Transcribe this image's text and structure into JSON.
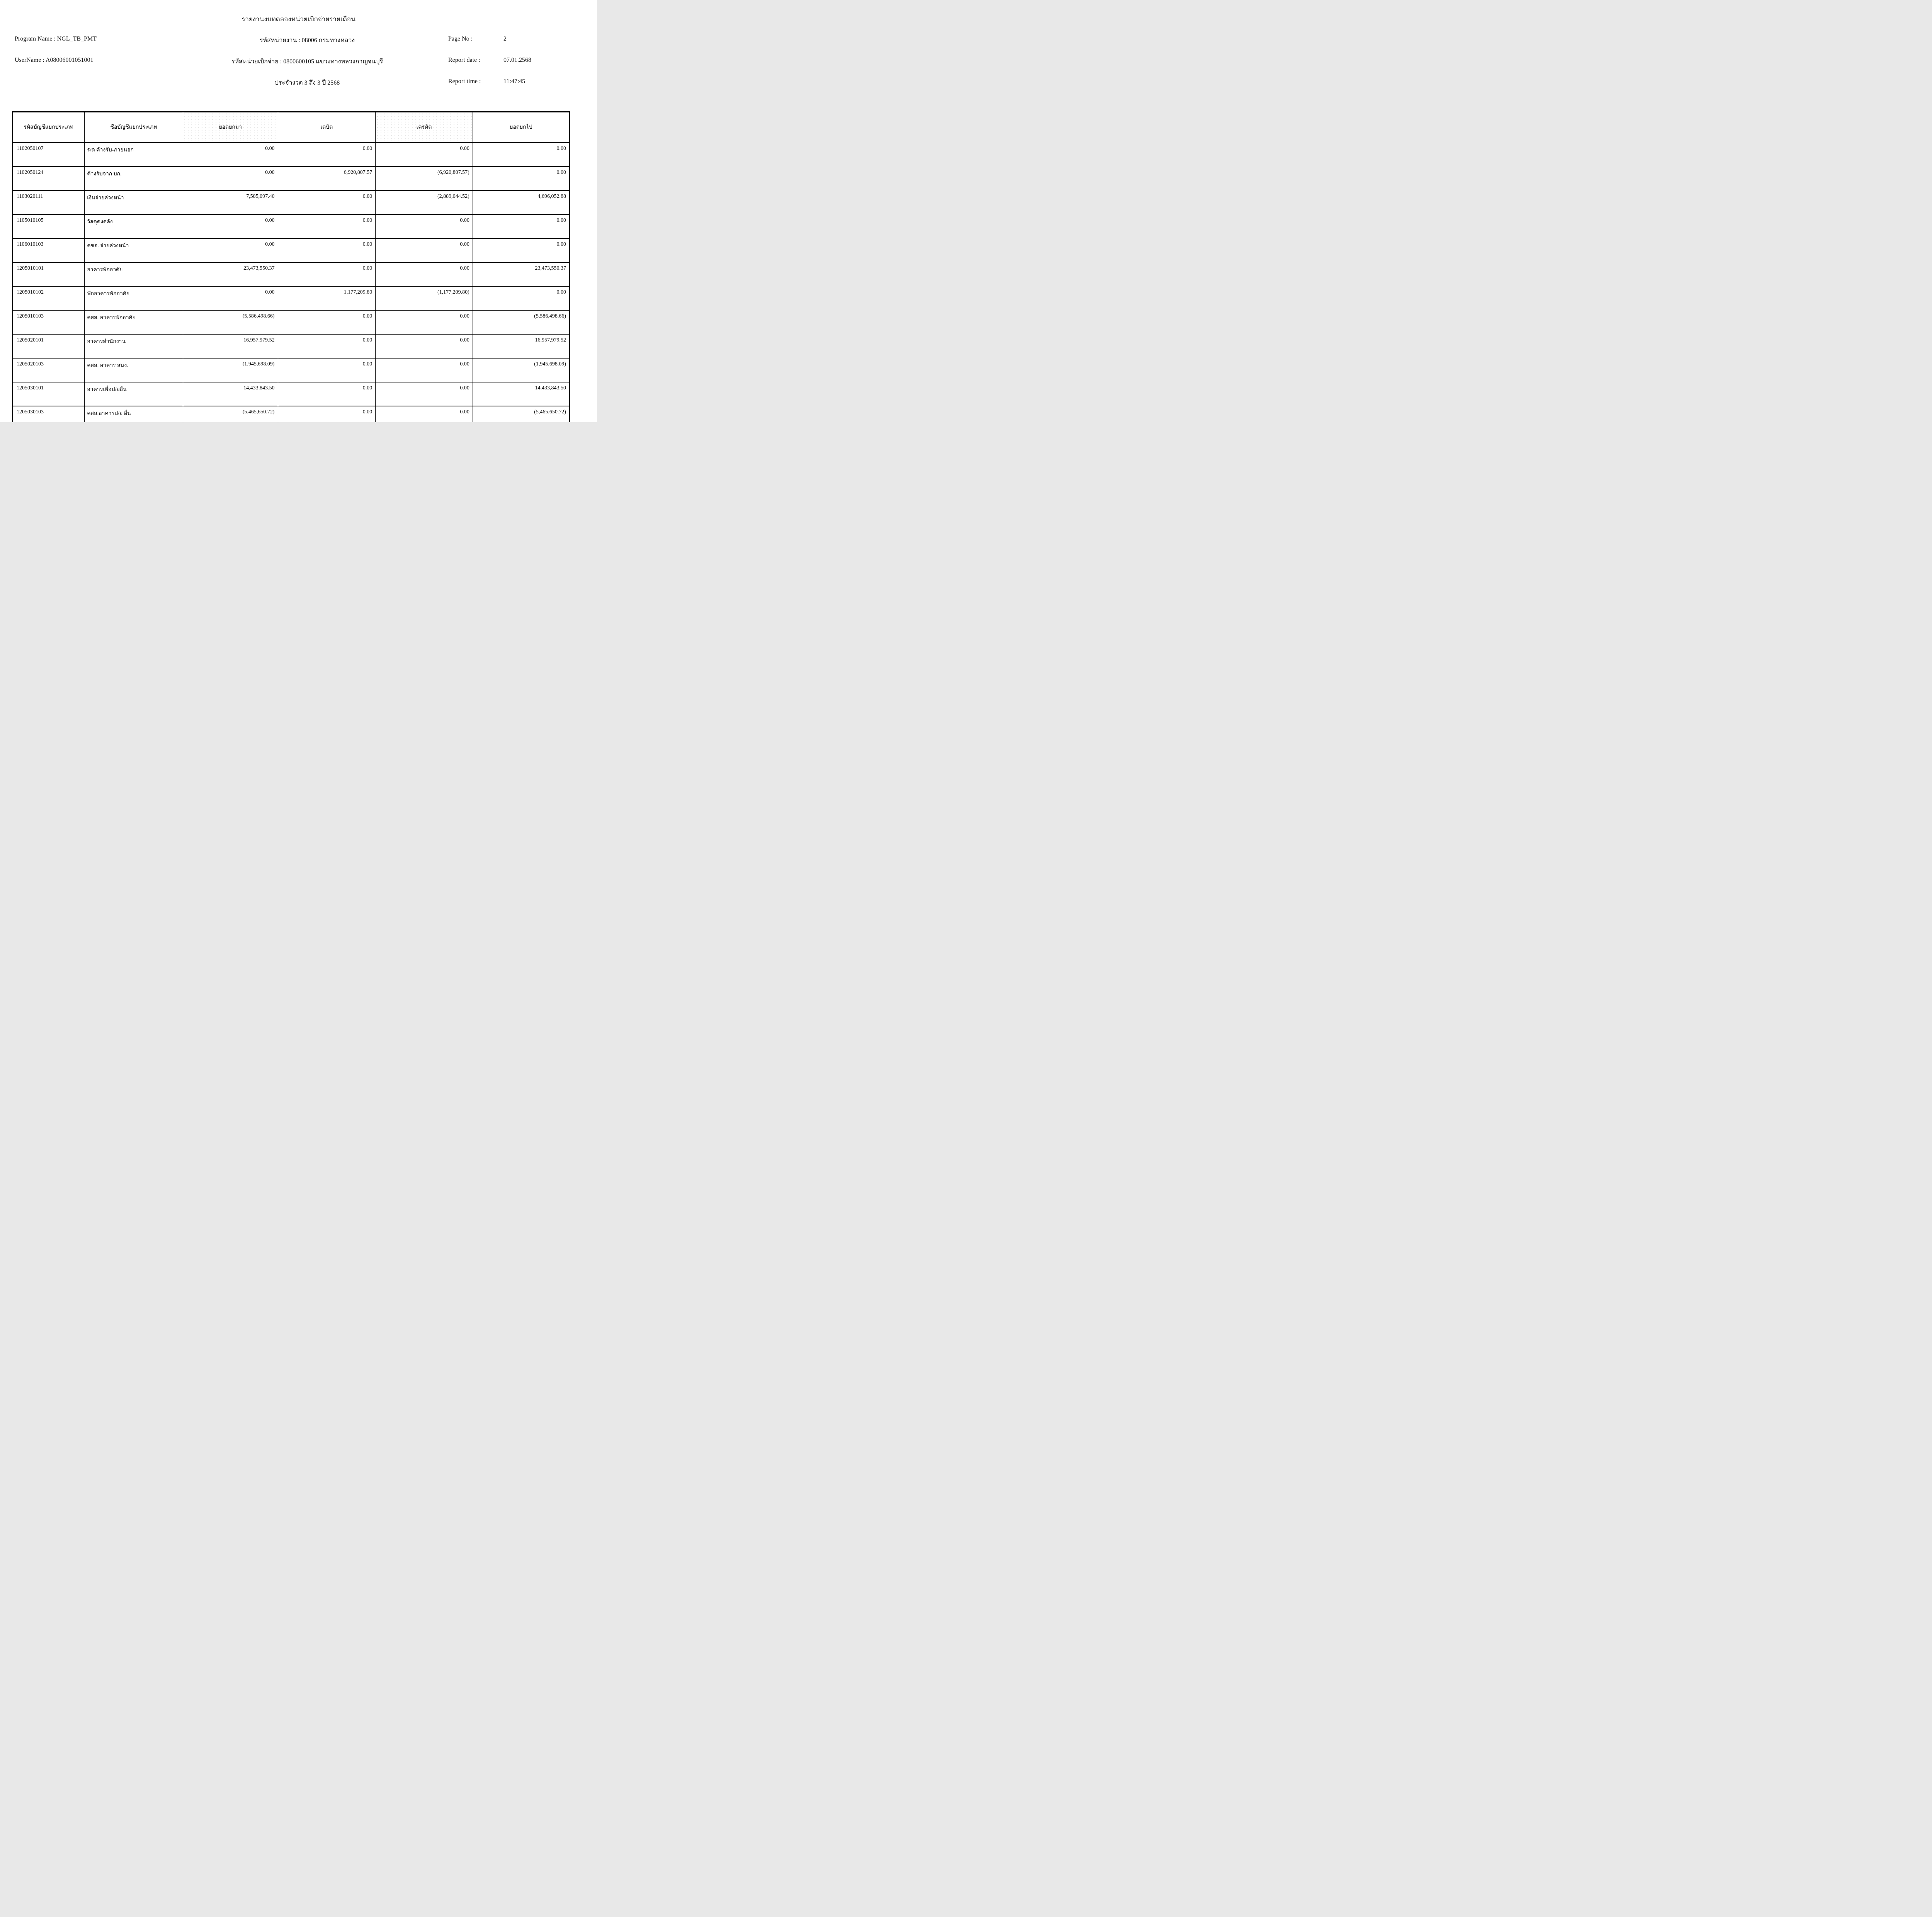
{
  "report": {
    "title": "รายงานงบทดลองหน่วยเบิกจ่ายรายเดือน",
    "program_name_label": "Program Name : NGL_TB_PMT",
    "username_label": "UserName : A08006001051001",
    "agency_line": "รหัสหน่วยงาน : 08006 กรมทางหลวง",
    "disbursement_line": "รหัสหน่วยเบิกจ่าย : 0800600105 แขวงทางหลวงกาญจนบุรี",
    "period_line": "ประจำงวด 3 ถึง 3 ปี 2568",
    "page_no_label": "Page No :",
    "page_no": "2",
    "report_date_label": "Report date :",
    "report_date": "07.01.2568",
    "report_time_label": "Report time :",
    "report_time": "11:47:45"
  },
  "table": {
    "columns": [
      "รหัสบัญชีแยกประเภท",
      "ชื่อบัญชีแยกประเภท",
      "ยอดยกมา",
      "เดบิต",
      "เครดิต",
      "ยอดยกไป"
    ],
    "rows": [
      {
        "code": "1102050107",
        "name": "ร/ด ค้างรับ-ภายนอก",
        "opening_balance": "0.00",
        "debit": "0.00",
        "credit": "0.00",
        "closing_balance": "0.00"
      },
      {
        "code": "1102050124",
        "name": "ค้างรับจาก บก.",
        "opening_balance": "0.00",
        "debit": "6,920,807.57",
        "credit": "(6,920,807.57)",
        "closing_balance": "0.00"
      },
      {
        "code": "1103020111",
        "name": "เงินจ่ายล่วงหน้า",
        "opening_balance": "7,585,097.40",
        "debit": "0.00",
        "credit": "(2,889,044.52)",
        "closing_balance": "4,696,052.88"
      },
      {
        "code": "1105010105",
        "name": "วัสดุคงคลัง",
        "opening_balance": "0.00",
        "debit": "0.00",
        "credit": "0.00",
        "closing_balance": "0.00"
      },
      {
        "code": "1106010103",
        "name": "คชจ. จ่ายล่วงหน้า",
        "opening_balance": "0.00",
        "debit": "0.00",
        "credit": "0.00",
        "closing_balance": "0.00"
      },
      {
        "code": "1205010101",
        "name": "อาคารพักอาศัย",
        "opening_balance": "23,473,550.37",
        "debit": "0.00",
        "credit": "0.00",
        "closing_balance": "23,473,550.37"
      },
      {
        "code": "1205010102",
        "name": "พักอาคารพักอาศัย",
        "opening_balance": "0.00",
        "debit": "1,177,209.80",
        "credit": "(1,177,209.80)",
        "closing_balance": "0.00"
      },
      {
        "code": "1205010103",
        "name": "คสส. อาคารพักอาศัย",
        "opening_balance": "(5,586,498.66)",
        "debit": "0.00",
        "credit": "0.00",
        "closing_balance": "(5,586,498.66)"
      },
      {
        "code": "1205020101",
        "name": "อาคารสำนักงาน",
        "opening_balance": "16,957,979.52",
        "debit": "0.00",
        "credit": "0.00",
        "closing_balance": "16,957,979.52"
      },
      {
        "code": "1205020103",
        "name": "คสส. อาคาร สนง.",
        "opening_balance": "(1,945,698.09)",
        "debit": "0.00",
        "credit": "0.00",
        "closing_balance": "(1,945,698.09)"
      },
      {
        "code": "1205030101",
        "name": "อาคารเพื่อป/ยอื่น",
        "opening_balance": "14,433,843.50",
        "debit": "0.00",
        "credit": "0.00",
        "closing_balance": "14,433,843.50"
      },
      {
        "code": "1205030103",
        "name": "คสส.อาคารป/ย อื่น",
        "opening_balance": "(5,465,650.72)",
        "debit": "0.00",
        "credit": "0.00",
        "closing_balance": "(5,465,650.72)"
      }
    ]
  }
}
